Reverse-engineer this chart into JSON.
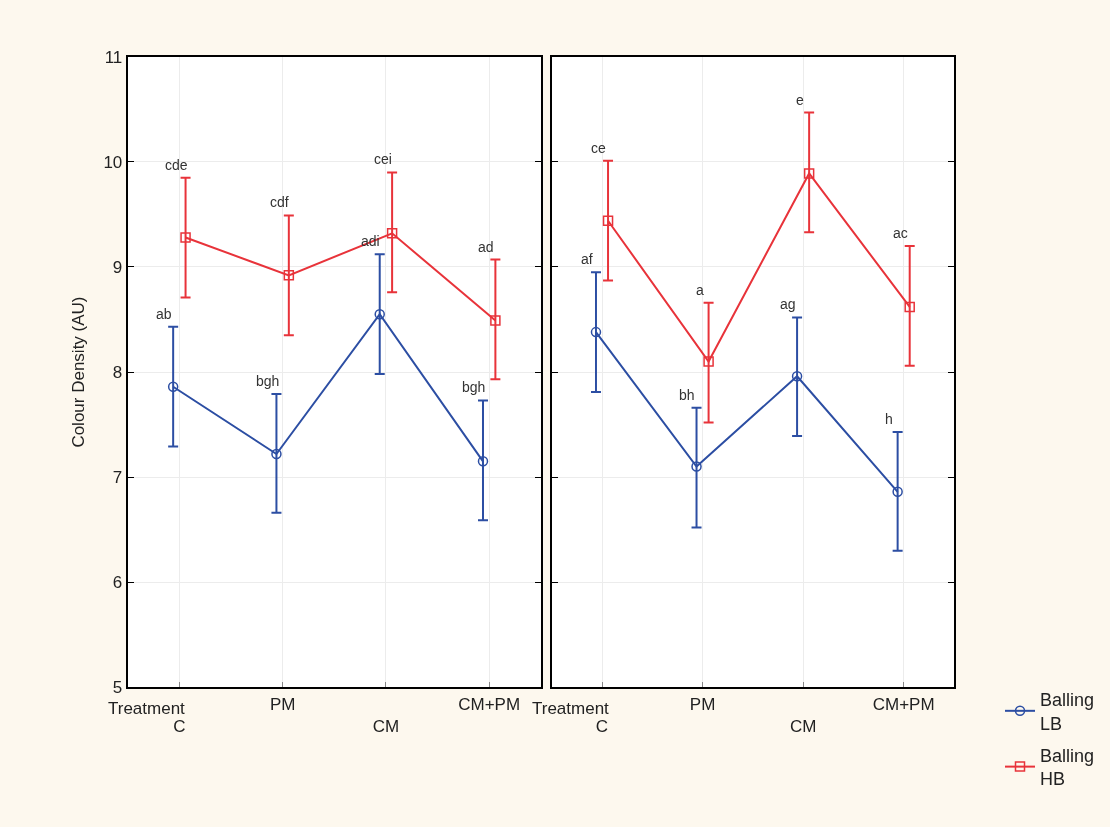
{
  "chart_data": [
    {
      "type": "line",
      "xlabel": "Treatment",
      "ylabel": "Colour Density (AU)",
      "categories": [
        "C",
        "PM",
        "CM",
        "CM+PM"
      ],
      "ylim": [
        5,
        11
      ],
      "yticks": [
        5,
        6,
        7,
        8,
        9,
        10,
        11
      ],
      "grid": true,
      "line_style": "solid",
      "legend": "bottom right",
      "series": [
        {
          "name": "Balling LB",
          "color": "#2c4ea3",
          "marker": "circle",
          "values": [
            7.86,
            7.22,
            8.55,
            7.15
          ],
          "errors": [
            [
              7.29,
              8.43
            ],
            [
              6.66,
              7.79
            ],
            [
              7.98,
              9.12
            ],
            [
              6.59,
              7.73
            ]
          ]
        },
        {
          "name": "Balling HB",
          "color": "#e8333a",
          "marker": "square",
          "values": [
            9.28,
            8.92,
            9.32,
            8.49
          ],
          "errors": [
            [
              8.71,
              9.85
            ],
            [
              8.35,
              9.49
            ],
            [
              8.76,
              9.9
            ],
            [
              7.93,
              9.07
            ]
          ]
        }
      ],
      "annotations": [
        {
          "text": "ab",
          "x": "C",
          "y": 8.43
        },
        {
          "text": "bgh",
          "x": "PM",
          "y": 7.79
        },
        {
          "text": "adi",
          "x": "CM",
          "y": 9.12
        },
        {
          "text": "bgh",
          "x": "CM+PM",
          "y": 7.73
        },
        {
          "text": "cde",
          "x": "C",
          "y": 9.85
        },
        {
          "text": "cdf",
          "x": "PM",
          "y": 9.49
        },
        {
          "text": "cei",
          "x": "CM",
          "y": 9.9
        },
        {
          "text": "ad",
          "x": "CM+PM",
          "y": 9.07
        }
      ]
    },
    {
      "type": "line",
      "xlabel": "Treatment",
      "categories": [
        "C",
        "PM",
        "CM",
        "CM+PM"
      ],
      "ylim": [
        5,
        11
      ],
      "yticks": [
        5,
        6,
        7,
        8,
        9,
        10,
        11
      ],
      "tick_labels": "x",
      "grid": true,
      "line_style": "solid",
      "legend": "bottom right",
      "series": [
        {
          "name": "Balling LB",
          "color": "#2c4ea3",
          "marker": "circle",
          "values": [
            8.38,
            7.1,
            7.96,
            6.86
          ],
          "errors": [
            [
              7.81,
              8.95
            ],
            [
              6.52,
              7.66
            ],
            [
              7.39,
              8.52
            ],
            [
              6.3,
              7.43
            ]
          ]
        },
        {
          "name": "Balling HB",
          "color": "#e8333a",
          "marker": "square",
          "values": [
            9.44,
            8.1,
            9.89,
            8.62
          ],
          "errors": [
            [
              8.87,
              10.01
            ],
            [
              7.52,
              8.66
            ],
            [
              9.33,
              10.47
            ],
            [
              8.06,
              9.2
            ]
          ]
        }
      ],
      "annotations": [
        {
          "text": "af",
          "x": "C",
          "y": 8.95
        },
        {
          "text": "bh",
          "x": "PM",
          "y": 7.66
        },
        {
          "text": "ag",
          "x": "CM",
          "y": 8.52
        },
        {
          "text": "h",
          "x": "CM+PM",
          "y": 7.43
        },
        {
          "text": "ce",
          "x": "C",
          "y": 10.01
        },
        {
          "text": "a",
          "x": "PM",
          "y": 8.66
        },
        {
          "text": "e",
          "x": "CM",
          "y": 10.47
        },
        {
          "text": "ac",
          "x": "CM+PM",
          "y": 9.2
        }
      ]
    }
  ]
}
